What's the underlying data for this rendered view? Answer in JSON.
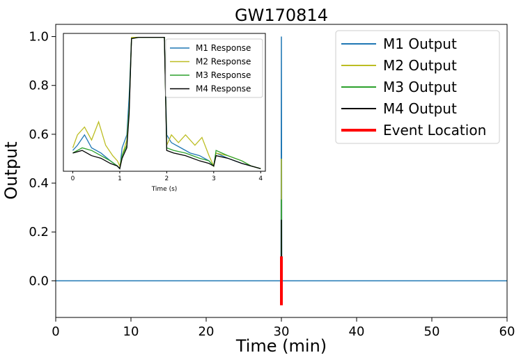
{
  "chart_data": [
    {
      "type": "line",
      "title": "GW170814",
      "xlabel": "Time (min)",
      "ylabel": "Output",
      "xlim": [
        0,
        60
      ],
      "ylim": [
        -0.15,
        1.05
      ],
      "xticks": [
        0,
        10,
        20,
        30,
        40,
        50,
        60
      ],
      "yticks": [
        0.0,
        0.2,
        0.4,
        0.6,
        0.8,
        1.0
      ],
      "xtick_labels": [
        "0",
        "10",
        "20",
        "30",
        "40",
        "50",
        "60"
      ],
      "ytick_labels": [
        "0.0",
        "0.2",
        "0.4",
        "0.6",
        "0.8",
        "1.0"
      ],
      "legend_position": "top-right",
      "grid": false,
      "series": [
        {
          "name": "M1 Output",
          "color": "#1f77b4",
          "points": [
            [
              0,
              0
            ],
            [
              29.95,
              0
            ],
            [
              30,
              1.0
            ],
            [
              30.05,
              0
            ],
            [
              60,
              0
            ]
          ]
        },
        {
          "name": "M2 Output",
          "color": "#bcbd22",
          "points": [
            [
              30,
              0
            ],
            [
              30,
              0.5
            ]
          ]
        },
        {
          "name": "M3 Output",
          "color": "#2ca02c",
          "points": [
            [
              30,
              0
            ],
            [
              30,
              0.333
            ]
          ]
        },
        {
          "name": "M4 Output",
          "color": "#000000",
          "points": [
            [
              30,
              0
            ],
            [
              30,
              0.25
            ]
          ]
        },
        {
          "name": "Event Location",
          "color": "#ff0000",
          "points": [
            [
              30,
              -0.1
            ],
            [
              30,
              0.1
            ]
          ]
        }
      ]
    },
    {
      "type": "line",
      "title": "",
      "xlabel": "Time (s)",
      "ylabel": "",
      "xlim": [
        -0.2,
        4.1
      ],
      "ylim": [
        0.46,
        0.99
      ],
      "xticks": [
        0,
        1,
        2,
        3,
        4
      ],
      "xtick_labels": [
        "0",
        "1",
        "2",
        "3",
        "4"
      ],
      "legend_position": "top-right",
      "grid": false,
      "series": [
        {
          "name": "M1 Response",
          "color": "#1f77b4",
          "points": [
            [
              0,
              0.54
            ],
            [
              0.1,
              0.56
            ],
            [
              0.25,
              0.6
            ],
            [
              0.4,
              0.55
            ],
            [
              0.6,
              0.53
            ],
            [
              0.8,
              0.5
            ],
            [
              0.95,
              0.48
            ],
            [
              1.0,
              0.47
            ],
            [
              1.05,
              0.55
            ],
            [
              1.15,
              0.6
            ],
            [
              1.2,
              0.75
            ],
            [
              1.25,
              0.97
            ],
            [
              1.4,
              0.975
            ],
            [
              1.6,
              0.975
            ],
            [
              1.8,
              0.975
            ],
            [
              1.95,
              0.975
            ],
            [
              2.0,
              0.6
            ],
            [
              2.1,
              0.57
            ],
            [
              2.3,
              0.55
            ],
            [
              2.5,
              0.53
            ],
            [
              2.7,
              0.52
            ],
            [
              2.9,
              0.5
            ],
            [
              3.0,
              0.48
            ],
            [
              3.05,
              0.53
            ],
            [
              3.3,
              0.51
            ],
            [
              3.6,
              0.49
            ],
            [
              3.8,
              0.48
            ],
            [
              4.0,
              0.47
            ]
          ]
        },
        {
          "name": "M2 Response",
          "color": "#bcbd22",
          "points": [
            [
              0,
              0.55
            ],
            [
              0.1,
              0.6
            ],
            [
              0.25,
              0.63
            ],
            [
              0.4,
              0.58
            ],
            [
              0.55,
              0.65
            ],
            [
              0.7,
              0.56
            ],
            [
              0.85,
              0.52
            ],
            [
              0.95,
              0.5
            ],
            [
              1.0,
              0.48
            ],
            [
              1.05,
              0.52
            ],
            [
              1.15,
              0.58
            ],
            [
              1.2,
              0.7
            ],
            [
              1.25,
              0.975
            ],
            [
              1.4,
              0.975
            ],
            [
              1.6,
              0.975
            ],
            [
              1.8,
              0.975
            ],
            [
              1.95,
              0.975
            ],
            [
              2.0,
              0.56
            ],
            [
              2.1,
              0.6
            ],
            [
              2.25,
              0.57
            ],
            [
              2.4,
              0.6
            ],
            [
              2.6,
              0.56
            ],
            [
              2.75,
              0.59
            ],
            [
              2.9,
              0.52
            ],
            [
              3.0,
              0.48
            ],
            [
              3.05,
              0.53
            ],
            [
              3.3,
              0.52
            ],
            [
              3.6,
              0.5
            ],
            [
              3.8,
              0.48
            ],
            [
              4.0,
              0.47
            ]
          ]
        },
        {
          "name": "M3 Response",
          "color": "#2ca02c",
          "points": [
            [
              0,
              0.53
            ],
            [
              0.2,
              0.55
            ],
            [
              0.4,
              0.54
            ],
            [
              0.6,
              0.52
            ],
            [
              0.8,
              0.5
            ],
            [
              0.95,
              0.48
            ],
            [
              1.0,
              0.47
            ],
            [
              1.05,
              0.52
            ],
            [
              1.15,
              0.56
            ],
            [
              1.2,
              0.7
            ],
            [
              1.25,
              0.97
            ],
            [
              1.4,
              0.975
            ],
            [
              1.6,
              0.975
            ],
            [
              1.8,
              0.975
            ],
            [
              1.95,
              0.975
            ],
            [
              2.0,
              0.55
            ],
            [
              2.15,
              0.54
            ],
            [
              2.4,
              0.53
            ],
            [
              2.7,
              0.51
            ],
            [
              2.9,
              0.5
            ],
            [
              3.0,
              0.48
            ],
            [
              3.05,
              0.54
            ],
            [
              3.3,
              0.52
            ],
            [
              3.6,
              0.5
            ],
            [
              3.8,
              0.48
            ],
            [
              4.0,
              0.47
            ]
          ]
        },
        {
          "name": "M4 Response",
          "color": "#000000",
          "points": [
            [
              0,
              0.53
            ],
            [
              0.2,
              0.54
            ],
            [
              0.4,
              0.52
            ],
            [
              0.6,
              0.51
            ],
            [
              0.8,
              0.49
            ],
            [
              0.95,
              0.48
            ],
            [
              1.0,
              0.47
            ],
            [
              1.05,
              0.51
            ],
            [
              1.15,
              0.55
            ],
            [
              1.2,
              0.68
            ],
            [
              1.25,
              0.97
            ],
            [
              1.4,
              0.975
            ],
            [
              1.6,
              0.975
            ],
            [
              1.8,
              0.975
            ],
            [
              1.95,
              0.975
            ],
            [
              2.0,
              0.54
            ],
            [
              2.15,
              0.53
            ],
            [
              2.4,
              0.52
            ],
            [
              2.7,
              0.5
            ],
            [
              2.9,
              0.49
            ],
            [
              3.0,
              0.48
            ],
            [
              3.05,
              0.52
            ],
            [
              3.3,
              0.51
            ],
            [
              3.6,
              0.49
            ],
            [
              3.8,
              0.48
            ],
            [
              4.0,
              0.47
            ]
          ]
        }
      ]
    }
  ]
}
